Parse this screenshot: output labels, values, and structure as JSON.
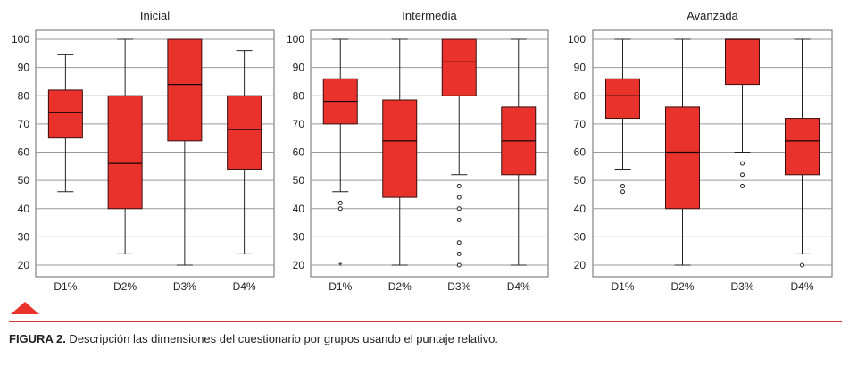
{
  "chart_data": [
    {
      "type": "box",
      "title": "Inicial",
      "categories": [
        "D1%",
        "D2%",
        "D3%",
        "D4%"
      ],
      "y_ticks": [
        20,
        30,
        40,
        50,
        60,
        70,
        80,
        90,
        100
      ],
      "ylim": [
        17,
        103
      ],
      "grid": true,
      "boxes": [
        {
          "min": 46,
          "q1": 65,
          "median": 74,
          "q3": 82,
          "max": 94.5,
          "outliers": [],
          "extremes": []
        },
        {
          "min": 24,
          "q1": 40,
          "median": 56,
          "q3": 80,
          "max": 100,
          "outliers": [],
          "extremes": []
        },
        {
          "min": 20,
          "q1": 64,
          "median": 84,
          "q3": 100,
          "max": 100,
          "outliers": [],
          "extremes": []
        },
        {
          "min": 24,
          "q1": 54,
          "median": 68,
          "q3": 80,
          "max": 96,
          "outliers": [],
          "extremes": []
        }
      ]
    },
    {
      "type": "box",
      "title": "Intermedia",
      "categories": [
        "D1%",
        "D2%",
        "D3%",
        "D4%"
      ],
      "y_ticks": [
        20,
        30,
        40,
        50,
        60,
        70,
        80,
        90,
        100
      ],
      "ylim": [
        17,
        103
      ],
      "grid": true,
      "boxes": [
        {
          "min": 46,
          "q1": 70,
          "median": 78,
          "q3": 86,
          "max": 100,
          "outliers": [
            42,
            40
          ],
          "extremes": [
            20
          ]
        },
        {
          "min": 20,
          "q1": 44,
          "median": 64,
          "q3": 78.5,
          "max": 100,
          "outliers": [],
          "extremes": []
        },
        {
          "min": 52,
          "q1": 80,
          "median": 92,
          "q3": 100,
          "max": 100,
          "outliers": [
            48,
            44,
            40,
            36,
            28,
            24,
            20
          ],
          "extremes": []
        },
        {
          "min": 20,
          "q1": 52,
          "median": 64,
          "q3": 76,
          "max": 100,
          "outliers": [],
          "extremes": []
        }
      ]
    },
    {
      "type": "box",
      "title": "Avanzada",
      "categories": [
        "D1%",
        "D2%",
        "D3%",
        "D4%"
      ],
      "y_ticks": [
        20,
        30,
        40,
        50,
        60,
        70,
        80,
        90,
        100
      ],
      "ylim": [
        17,
        103
      ],
      "grid": true,
      "boxes": [
        {
          "min": 54,
          "q1": 72,
          "median": 80,
          "q3": 86,
          "max": 100,
          "outliers": [
            48,
            46
          ],
          "extremes": []
        },
        {
          "min": 20,
          "q1": 40,
          "median": 60,
          "q3": 76,
          "max": 100,
          "outliers": [],
          "extremes": []
        },
        {
          "min": 60,
          "q1": 84,
          "median": 100,
          "q3": 100,
          "max": 100,
          "outliers": [
            56,
            52,
            48
          ],
          "extremes": []
        },
        {
          "min": 24,
          "q1": 52,
          "median": 64,
          "q3": 72,
          "max": 100,
          "outliers": [
            20
          ],
          "extremes": []
        }
      ]
    }
  ],
  "colors": {
    "box_fill": "#e8322b",
    "box_stroke": "#3a1010",
    "grid": "#9a9a9a",
    "marker": "#e8322b",
    "rule": "#cf3b35"
  },
  "caption": {
    "label": "FIGURA 2.",
    "text": " Descripción las dimensiones del cuestionario por grupos usando el puntaje relativo."
  }
}
